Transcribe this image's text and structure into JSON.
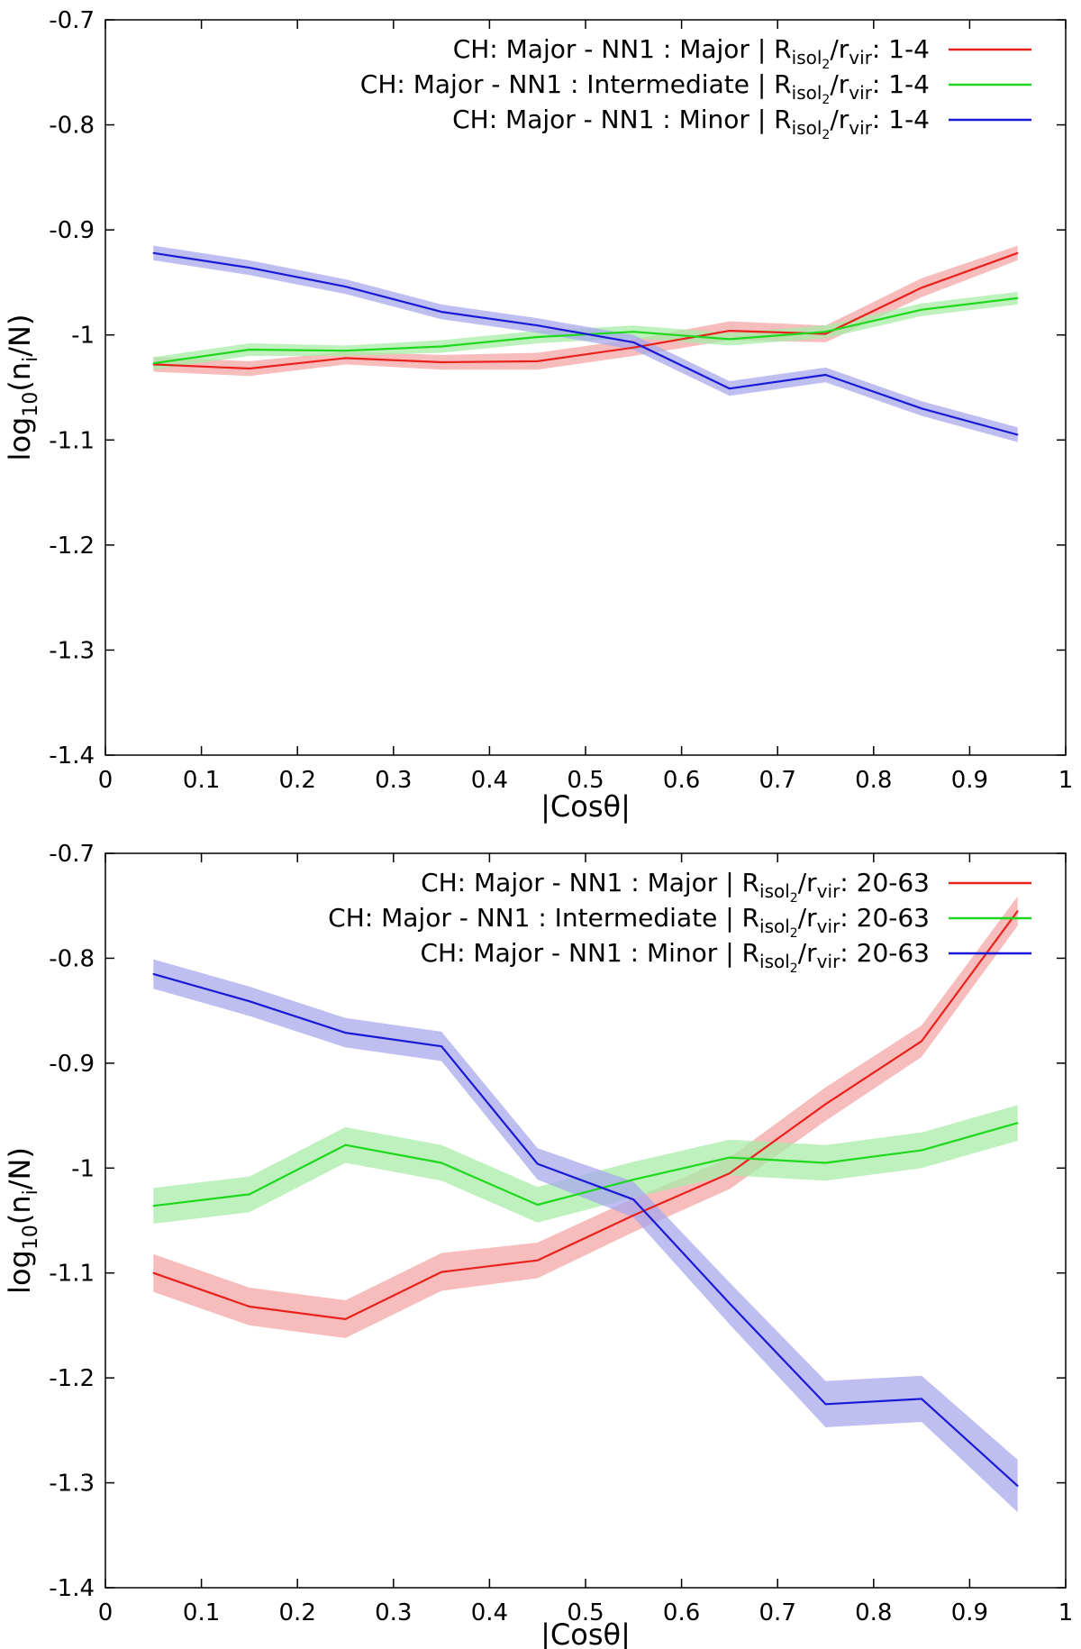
{
  "chart_data": [
    {
      "type": "line",
      "xlabel": "|Cosθ|",
      "ylabel": "log10(ni/N)",
      "ylabel_parts": {
        "base": "log",
        "base_sub": "10",
        "open": "(n",
        "n_sub": "i",
        "close": "/N)"
      },
      "xlim": [
        0,
        1
      ],
      "ylim": [
        -1.4,
        -0.7
      ],
      "xticks": [
        "0",
        "0.1",
        "0.2",
        "0.3",
        "0.4",
        "0.5",
        "0.6",
        "0.7",
        "0.8",
        "0.9",
        "1"
      ],
      "xtick_values": [
        0,
        0.1,
        0.2,
        0.3,
        0.4,
        0.5,
        0.6,
        0.7,
        0.8,
        0.9,
        1
      ],
      "yticks": [
        "-0.7",
        "-0.8",
        "-0.9",
        "-1",
        "-1.1",
        "-1.2",
        "-1.3",
        "-1.4"
      ],
      "ytick_values": [
        -0.7,
        -0.8,
        -0.9,
        -1.0,
        -1.1,
        -1.2,
        -1.3,
        -1.4
      ],
      "legend_position": "top-right",
      "x": [
        0.05,
        0.15,
        0.25,
        0.35,
        0.45,
        0.55,
        0.65,
        0.75,
        0.85,
        0.95
      ],
      "series": [
        {
          "name": "CH: Major - NN1 : Major | Risol2/rvir: 1-4",
          "legend": {
            "text": "CH: Major - NN1 : Major | R",
            "sub1": "isol",
            "sub2": "2",
            "mid": "/r",
            "sub3": "vir",
            "tail": ": 1-4"
          },
          "color": "#e8221c",
          "band_color": "#f4a6a6",
          "values": [
            -1.028,
            -1.032,
            -1.022,
            -1.026,
            -1.025,
            -1.012,
            -0.996,
            -0.999,
            -0.955,
            -0.922
          ],
          "errors": [
            0.007,
            0.007,
            0.006,
            0.007,
            0.008,
            0.008,
            0.009,
            0.008,
            0.009,
            0.007
          ]
        },
        {
          "name": "CH: Major - NN1 : Intermediate | Risol2/rvir: 1-4",
          "legend": {
            "text": "CH: Major - NN1 : Intermediate | R",
            "sub1": "isol",
            "sub2": "2",
            "mid": "/r",
            "sub3": "vir",
            "tail": ": 1-4"
          },
          "color": "#1ed81e",
          "band_color": "#a8eca8",
          "values": [
            -1.027,
            -1.014,
            -1.015,
            -1.011,
            -1.002,
            -0.997,
            -1.004,
            -0.997,
            -0.976,
            -0.965
          ],
          "errors": [
            0.006,
            0.006,
            0.005,
            0.006,
            0.006,
            0.006,
            0.006,
            0.006,
            0.006,
            0.006
          ]
        },
        {
          "name": "CH: Major - NN1 : Minor | Risol2/rvir: 1-4",
          "legend": {
            "text": "CH: Major - NN1 : Minor | R",
            "sub1": "isol",
            "sub2": "2",
            "mid": "/r",
            "sub3": "vir",
            "tail": ": 1-4"
          },
          "color": "#1a1ad6",
          "band_color": "#a8a8ec",
          "values": [
            -0.922,
            -0.936,
            -0.954,
            -0.978,
            -0.991,
            -1.007,
            -1.051,
            -1.038,
            -1.07,
            -1.095
          ],
          "errors": [
            0.007,
            0.007,
            0.007,
            0.007,
            0.007,
            0.007,
            0.007,
            0.007,
            0.007,
            0.007
          ]
        }
      ]
    },
    {
      "type": "line",
      "xlabel": "|Cosθ|",
      "ylabel": "log10(ni/N)",
      "ylabel_parts": {
        "base": "log",
        "base_sub": "10",
        "open": "(n",
        "n_sub": "i",
        "close": "/N)"
      },
      "xlim": [
        0,
        1
      ],
      "ylim": [
        -1.4,
        -0.7
      ],
      "xticks": [
        "0",
        "0.1",
        "0.2",
        "0.3",
        "0.4",
        "0.5",
        "0.6",
        "0.7",
        "0.8",
        "0.9",
        "1"
      ],
      "xtick_values": [
        0,
        0.1,
        0.2,
        0.3,
        0.4,
        0.5,
        0.6,
        0.7,
        0.8,
        0.9,
        1
      ],
      "yticks": [
        "-0.7",
        "-0.8",
        "-0.9",
        "-1",
        "-1.1",
        "-1.2",
        "-1.3",
        "-1.4"
      ],
      "ytick_values": [
        -0.7,
        -0.8,
        -0.9,
        -1.0,
        -1.1,
        -1.2,
        -1.3,
        -1.4
      ],
      "legend_position": "top-right",
      "x": [
        0.05,
        0.15,
        0.25,
        0.35,
        0.45,
        0.55,
        0.65,
        0.75,
        0.85,
        0.95
      ],
      "series": [
        {
          "name": "CH: Major - NN1 : Major | Risol2/rvir: 20-63",
          "legend": {
            "text": "CH: Major - NN1 : Major | R",
            "sub1": "isol",
            "sub2": "2",
            "mid": "/r",
            "sub3": "vir",
            "tail": ": 20-63"
          },
          "color": "#e8221c",
          "band_color": "#f4a6a6",
          "values": [
            -1.1,
            -1.132,
            -1.144,
            -1.099,
            -1.088,
            -1.045,
            -1.005,
            -0.939,
            -0.879,
            -0.755
          ],
          "errors": [
            0.018,
            0.018,
            0.018,
            0.018,
            0.017,
            0.016,
            0.015,
            0.016,
            0.015,
            0.014
          ]
        },
        {
          "name": "CH: Major - NN1 : Intermediate | Risol2/rvir: 20-63",
          "legend": {
            "text": "CH: Major - NN1 : Intermediate | R",
            "sub1": "isol",
            "sub2": "2",
            "mid": "/r",
            "sub3": "vir",
            "tail": ": 20-63"
          },
          "color": "#1ed81e",
          "band_color": "#a8eca8",
          "values": [
            -1.036,
            -1.025,
            -0.978,
            -0.995,
            -1.035,
            -1.011,
            -0.99,
            -0.995,
            -0.983,
            -0.957
          ],
          "errors": [
            0.017,
            0.017,
            0.017,
            0.017,
            0.017,
            0.017,
            0.017,
            0.017,
            0.017,
            0.017
          ]
        },
        {
          "name": "CH: Major - NN1 : Minor | Risol2/rvir: 20-63",
          "legend": {
            "text": "CH: Major - NN1 : Minor | R",
            "sub1": "isol",
            "sub2": "2",
            "mid": "/r",
            "sub3": "vir",
            "tail": ": 20-63"
          },
          "color": "#1a1ad6",
          "band_color": "#a8a8ec",
          "values": [
            -0.815,
            -0.841,
            -0.871,
            -0.884,
            -0.996,
            -1.03,
            -1.129,
            -1.225,
            -1.22,
            -1.303
          ],
          "errors": [
            0.014,
            0.014,
            0.014,
            0.014,
            0.015,
            0.017,
            0.02,
            0.022,
            0.022,
            0.025
          ]
        }
      ]
    }
  ]
}
